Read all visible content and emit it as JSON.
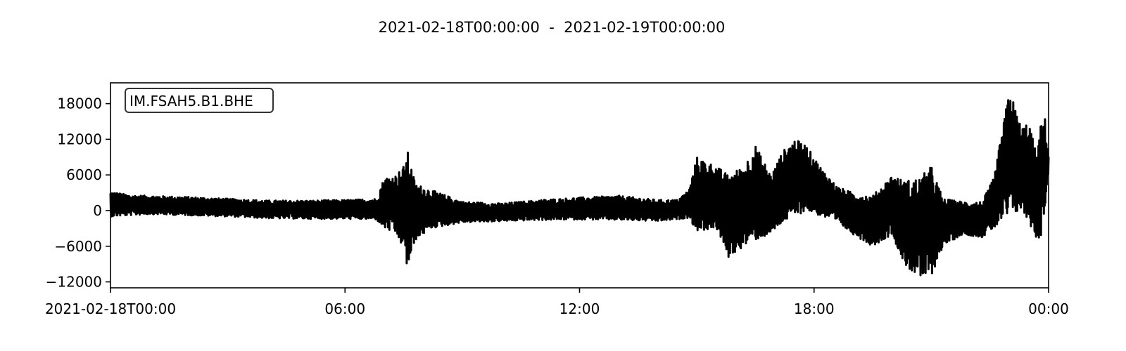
{
  "chart_data": {
    "type": "line",
    "title": "2021-02-18T00:00:00  -  2021-02-19T00:00:00",
    "xlabel": "",
    "ylabel": "",
    "x_unit": "hours since 2021-02-18T00:00:00",
    "xlim": [
      0,
      24
    ],
    "ylim": [
      -13000,
      21500
    ],
    "yticks": [
      18000,
      12000,
      6000,
      0,
      -6000,
      -12000
    ],
    "ytick_labels": [
      "18000",
      "12000",
      "6000",
      "0",
      "−6000",
      "−12000"
    ],
    "xticks": [
      0,
      6,
      12,
      18,
      24
    ],
    "xtick_labels": [
      "2021-02-18T00:00",
      "06:00",
      "12:00",
      "18:00",
      "00:00"
    ],
    "grid": false,
    "legend": "none",
    "trace_label": "IM.FSAH5.B1.BHE",
    "line_color": "#000000",
    "envelope": [
      {
        "t": 0.0,
        "lo": -1000,
        "hi": 3200
      },
      {
        "t": 0.5,
        "lo": -800,
        "hi": 2600
      },
      {
        "t": 1.0,
        "lo": -600,
        "hi": 2500
      },
      {
        "t": 2.0,
        "lo": -800,
        "hi": 2300
      },
      {
        "t": 3.0,
        "lo": -1000,
        "hi": 2000
      },
      {
        "t": 4.0,
        "lo": -1300,
        "hi": 1700
      },
      {
        "t": 5.0,
        "lo": -1400,
        "hi": 1700
      },
      {
        "t": 6.0,
        "lo": -1400,
        "hi": 1800
      },
      {
        "t": 6.8,
        "lo": -1500,
        "hi": 2000
      },
      {
        "t": 7.0,
        "lo": -3000,
        "hi": 5500
      },
      {
        "t": 7.3,
        "lo": -4000,
        "hi": 6000
      },
      {
        "t": 7.5,
        "lo": -6500,
        "hi": 7500
      },
      {
        "t": 7.6,
        "lo": -10000,
        "hi": 10000
      },
      {
        "t": 7.8,
        "lo": -5000,
        "hi": 4500
      },
      {
        "t": 8.2,
        "lo": -3000,
        "hi": 3500
      },
      {
        "t": 9.0,
        "lo": -2000,
        "hi": 1500
      },
      {
        "t": 10.0,
        "lo": -1800,
        "hi": 1200
      },
      {
        "t": 11.0,
        "lo": -1600,
        "hi": 1800
      },
      {
        "t": 12.0,
        "lo": -1500,
        "hi": 2200
      },
      {
        "t": 13.0,
        "lo": -1600,
        "hi": 2500
      },
      {
        "t": 14.0,
        "lo": -1800,
        "hi": 1800
      },
      {
        "t": 14.5,
        "lo": -1500,
        "hi": 1800
      },
      {
        "t": 14.8,
        "lo": -1200,
        "hi": 3500
      },
      {
        "t": 15.0,
        "lo": -3500,
        "hi": 9000
      },
      {
        "t": 15.5,
        "lo": -3000,
        "hi": 7500
      },
      {
        "t": 15.8,
        "lo": -8000,
        "hi": 6000
      },
      {
        "t": 16.2,
        "lo": -6000,
        "hi": 7500
      },
      {
        "t": 16.5,
        "lo": -5000,
        "hi": 11000
      },
      {
        "t": 16.9,
        "lo": -4000,
        "hi": 6000
      },
      {
        "t": 17.2,
        "lo": -2000,
        "hi": 10000
      },
      {
        "t": 17.5,
        "lo": -1000,
        "hi": 12000
      },
      {
        "t": 17.8,
        "lo": 0,
        "hi": 11000
      },
      {
        "t": 18.2,
        "lo": -1000,
        "hi": 7000
      },
      {
        "t": 18.6,
        "lo": -2000,
        "hi": 4000
      },
      {
        "t": 19.0,
        "lo": -4000,
        "hi": 3000
      },
      {
        "t": 19.5,
        "lo": -6000,
        "hi": 2500
      },
      {
        "t": 20.0,
        "lo": -4000,
        "hi": 6000
      },
      {
        "t": 20.3,
        "lo": -9000,
        "hi": 5000
      },
      {
        "t": 20.7,
        "lo": -11500,
        "hi": 5500
      },
      {
        "t": 21.0,
        "lo": -11000,
        "hi": 7500
      },
      {
        "t": 21.3,
        "lo": -6000,
        "hi": 2000
      },
      {
        "t": 21.8,
        "lo": -4000,
        "hi": 1500
      },
      {
        "t": 22.3,
        "lo": -4500,
        "hi": 1500
      },
      {
        "t": 22.6,
        "lo": -3000,
        "hi": 5500
      },
      {
        "t": 23.0,
        "lo": -1000,
        "hi": 20500
      },
      {
        "t": 23.3,
        "lo": 0,
        "hi": 14000
      },
      {
        "t": 23.5,
        "lo": -2000,
        "hi": 15000
      },
      {
        "t": 23.7,
        "lo": -5000,
        "hi": 9000
      },
      {
        "t": 23.8,
        "lo": -4500,
        "hi": 14500
      },
      {
        "t": 23.9,
        "lo": 0,
        "hi": 16000
      },
      {
        "t": 24.0,
        "lo": 6500,
        "hi": 9500
      }
    ]
  }
}
